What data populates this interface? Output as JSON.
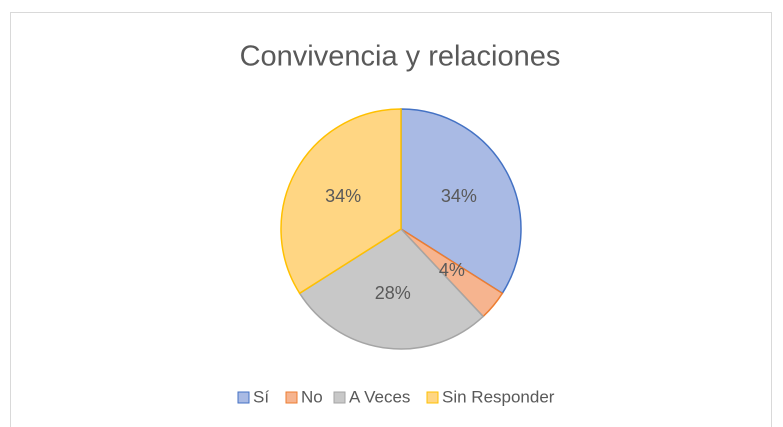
{
  "chart_data": {
    "type": "pie",
    "title": "Convivencia  y relaciones",
    "categories": [
      "Sí",
      "No",
      "A Veces",
      "Sin Responder"
    ],
    "values": [
      34,
      4,
      28,
      34
    ],
    "value_labels": [
      "34%",
      "4%",
      "28%",
      "34%"
    ],
    "colors": [
      "#a9bae4",
      "#f6b48f",
      "#c8c8c8",
      "#ffd683"
    ],
    "stroke_colors": [
      "#4472c4",
      "#ed7d31",
      "#a5a5a5",
      "#ffc000"
    ],
    "legend": "bottom"
  }
}
